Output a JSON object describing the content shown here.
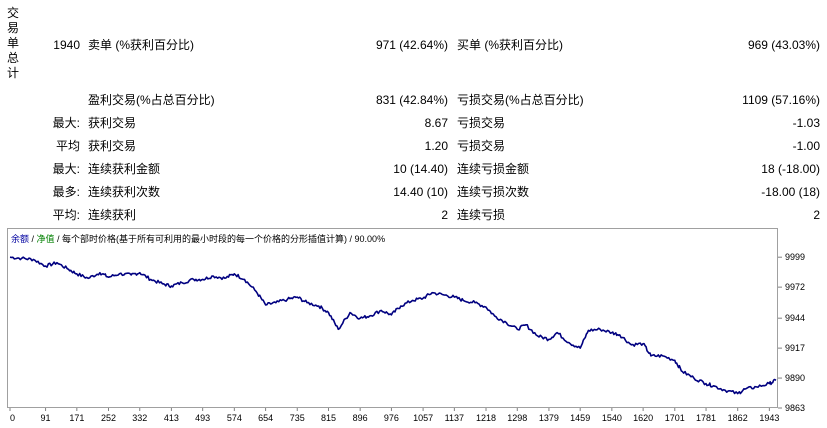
{
  "summary": {
    "side_label": [
      "交",
      "易",
      "单",
      "总",
      "计"
    ],
    "total_trades": "1940",
    "short_label": "卖单 (%获利百分比)",
    "short_value": "971 (42.64%)",
    "long_label": "买单 (%获利百分比)",
    "long_value": "969 (43.03%)",
    "profit_trades_label": "盈利交易(%占总百分比)",
    "profit_trades_value": "831 (42.84%)",
    "loss_trades_label": "亏损交易(%占总百分比)",
    "loss_trades_value": "1109 (57.16%)",
    "rows": [
      {
        "prefix": "最大:",
        "left_label": "获利交易",
        "left_value": "8.67",
        "right_label": "亏损交易",
        "right_value": "-1.03"
      },
      {
        "prefix": "平均",
        "left_label": "获利交易",
        "left_value": "1.20",
        "right_label": "亏损交易",
        "right_value": "-1.00"
      },
      {
        "prefix": "最大:",
        "left_label": "连续获利金额",
        "left_value": "10 (14.40)",
        "right_label": "连续亏损金额",
        "right_value": "18 (-18.00)"
      },
      {
        "prefix": "最多:",
        "left_label": "连续获利次数",
        "left_value": "14.40 (10)",
        "right_label": "连续亏损次数",
        "right_value": "-18.00 (18)"
      },
      {
        "prefix": "平均:",
        "left_label": "连续获利",
        "left_value": "2",
        "right_label": "连续亏损",
        "right_value": "2"
      }
    ]
  },
  "legend": {
    "balance": "余额",
    "sep1": " / ",
    "equity": "净值",
    "rest": " / 每个部时价格(基于所有可利用的最小时段的每一个价格的分形插值计算) / 90.00%"
  },
  "chart_data": {
    "type": "line",
    "series": [
      {
        "color": "#000080",
        "x": [
          0,
          30,
          60,
          91,
          120,
          150,
          171,
          200,
          230,
          252,
          280,
          310,
          332,
          360,
          390,
          413,
          440,
          470,
          493,
          520,
          550,
          574,
          600,
          630,
          654,
          680,
          710,
          735,
          760,
          790,
          815,
          840,
          870,
          896,
          920,
          950,
          976,
          1000,
          1030,
          1057,
          1080,
          1110,
          1137,
          1160,
          1190,
          1218,
          1240,
          1270,
          1298,
          1320,
          1350,
          1379,
          1400,
          1430,
          1459,
          1480,
          1510,
          1540,
          1560,
          1590,
          1620,
          1640,
          1670,
          1701,
          1720,
          1750,
          1781,
          1800,
          1830,
          1862,
          1880,
          1910,
          1943,
          1960
        ],
        "y": [
          9999,
          9998,
          9997,
          9991,
          9994,
          9988,
          9984,
          9980,
          9985,
          9981,
          9984,
          9983,
          9985,
          9979,
          9975,
          9973,
          9976,
          9979,
          9979,
          9982,
          9980,
          9984,
          9979,
          9968,
          9956,
          9958,
          9961,
          9963,
          9958,
          9955,
          9949,
          9934,
          9949,
          9944,
          9946,
          9951,
          9947,
          9955,
          9960,
          9962,
          9967,
          9965,
          9963,
          9960,
          9958,
          9954,
          9946,
          9940,
          9934,
          9938,
          9928,
          9925,
          9931,
          9922,
          9917,
          9933,
          9934,
          9931,
          9929,
          9920,
          9921,
          9910,
          9910,
          9906,
          9896,
          9890,
          9885,
          9883,
          9879,
          9876,
          9880,
          9882,
          9885,
          9888
        ]
      }
    ],
    "x_ticks": [
      "0",
      "91",
      "171",
      "252",
      "332",
      "413",
      "493",
      "574",
      "654",
      "735",
      "815",
      "896",
      "976",
      "1057",
      "1137",
      "1218",
      "1298",
      "1379",
      "1459",
      "1540",
      "1620",
      "1701",
      "1781",
      "1862",
      "1943"
    ],
    "y_ticks": [
      "9999",
      "9972",
      "9944",
      "9917",
      "9890",
      "9863"
    ],
    "xlim": [
      0,
      1960
    ],
    "ylim": [
      9863,
      10010
    ]
  }
}
